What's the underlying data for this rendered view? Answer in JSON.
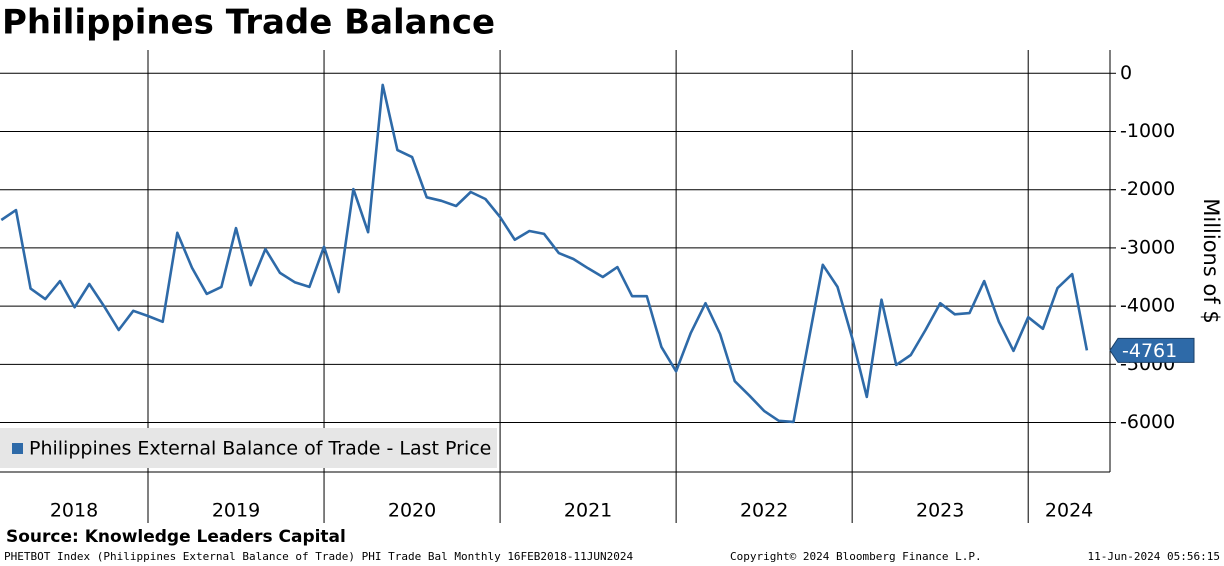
{
  "chart_data": {
    "type": "line",
    "title": "Philippines Trade Balance",
    "y_label": "Millions of $",
    "year_labels": [
      "2018",
      "2019",
      "2020",
      "2021",
      "2022",
      "2023",
      "2024"
    ],
    "series": [
      {
        "name": "Philippines External Balance of Trade - Last Price",
        "color": "#2e6aa8",
        "values": [
          -2520,
          -2350,
          -3700,
          -3880,
          -3570,
          -4020,
          -3620,
          -4000,
          -4410,
          -4080,
          -4170,
          -4270,
          -2740,
          -3340,
          -3790,
          -3670,
          -2660,
          -3640,
          -3020,
          -3430,
          -3590,
          -3670,
          -2980,
          -3760,
          -1990,
          -2730,
          -200,
          -1320,
          -1440,
          -2130,
          -2190,
          -2280,
          -2040,
          -2160,
          -2470,
          -2860,
          -2710,
          -2760,
          -3090,
          -3190,
          -3350,
          -3500,
          -3330,
          -3830,
          -3830,
          -4700,
          -5120,
          -4460,
          -3950,
          -4480,
          -5290,
          -5540,
          -5800,
          -5970,
          -5990,
          -4640,
          -3290,
          -3670,
          -4550,
          -5560,
          -3890,
          -5010,
          -4840,
          -4410,
          -3950,
          -4140,
          -4120,
          -3570,
          -4270,
          -4770,
          -4190,
          -4390,
          -3690,
          -3450,
          -4761
        ]
      }
    ],
    "ylim": [
      -6850,
      400
    ],
    "yticks": [
      0,
      -1000,
      -2000,
      -3000,
      -4000,
      -5000,
      -6000
    ],
    "grid": true,
    "legend": "lower left",
    "source": "Source: Knowledge Leaders Capital",
    "footer_left": "PHETBOT Index (Philippines External Balance of Trade) PHI Trade Bal  Monthly 16FEB2018-11JUN2024",
    "footer_center": "Copyright© 2024 Bloomberg Finance L.P.",
    "footer_right": "11-Jun-2024 05:56:15"
  }
}
